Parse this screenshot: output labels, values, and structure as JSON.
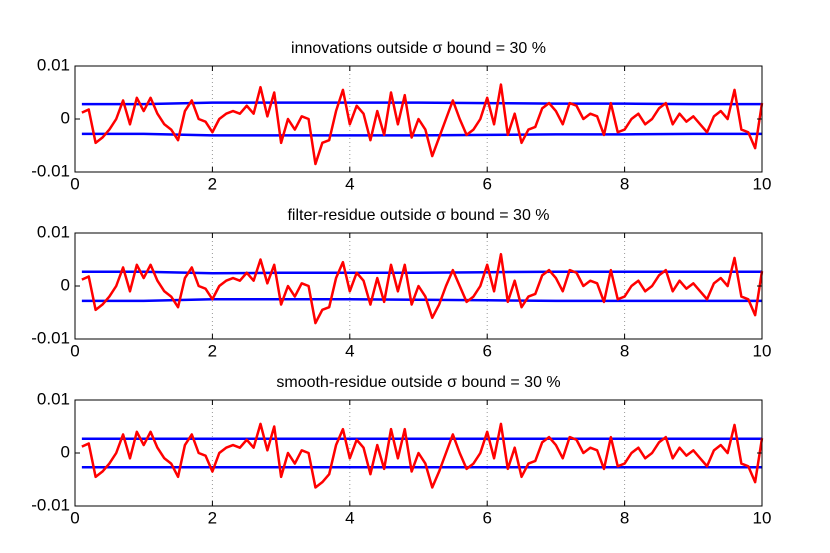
{
  "chart_data": [
    {
      "type": "line",
      "title": "innovations outside σ bound = 30 %",
      "x": [
        0.1,
        0.2,
        0.3,
        0.4,
        0.5,
        0.6,
        0.7,
        0.8,
        0.9,
        1,
        1.1,
        1.2,
        1.3,
        1.4,
        1.5,
        1.6,
        1.7,
        1.8,
        1.9,
        2,
        2.1,
        2.2,
        2.3,
        2.4,
        2.5,
        2.6,
        2.7,
        2.8,
        2.9,
        3,
        3.1,
        3.2,
        3.3,
        3.4,
        3.5,
        3.6,
        3.7,
        3.8,
        3.9,
        4,
        4.1,
        4.2,
        4.3,
        4.4,
        4.5,
        4.6,
        4.7,
        4.8,
        4.9,
        5,
        5.1,
        5.2,
        5.3,
        5.4,
        5.5,
        5.6,
        5.7,
        5.8,
        5.9,
        6,
        6.1,
        6.2,
        6.3,
        6.4,
        6.5,
        6.6,
        6.7,
        6.8,
        6.9,
        7,
        7.1,
        7.2,
        7.3,
        7.4,
        7.5,
        7.6,
        7.7,
        7.8,
        7.9,
        8,
        8.1,
        8.2,
        8.3,
        8.4,
        8.5,
        8.6,
        8.7,
        8.8,
        8.9,
        9,
        9.1,
        9.2,
        9.3,
        9.4,
        9.5,
        9.6,
        9.7,
        9.8,
        9.9,
        10
      ],
      "series": [
        {
          "color": "#0000ff",
          "x": [
            0.1,
            1,
            2,
            3,
            4,
            5,
            6,
            7,
            8,
            9,
            10
          ],
          "values": [
            0.0028,
            0.0028,
            0.0031,
            0.0031,
            0.0031,
            0.0031,
            0.003,
            0.0029,
            0.0029,
            0.0028,
            0.0028
          ]
        },
        {
          "color": "#0000ff",
          "x": [
            0.1,
            1,
            2,
            3,
            4,
            5,
            6,
            7,
            8,
            9,
            10
          ],
          "values": [
            -0.0028,
            -0.0028,
            -0.0031,
            -0.0031,
            -0.0031,
            -0.0031,
            -0.003,
            -0.0029,
            -0.0029,
            -0.0028,
            -0.0028
          ]
        },
        {
          "color": "#ff0000",
          "values": [
            0.0012,
            0.0018,
            -0.0045,
            -0.0035,
            -0.002,
            0,
            0.0035,
            -0.001,
            0.004,
            0.0015,
            0.004,
            0.001,
            -0.001,
            -0.002,
            -0.004,
            0.0015,
            0.0035,
            0,
            -0.0005,
            -0.0025,
            0,
            0.001,
            0.0015,
            0.001,
            0.0025,
            0.001,
            0.006,
            0.0005,
            0.005,
            -0.0045,
            0,
            -0.002,
            0.0005,
            0,
            -0.0085,
            -0.0045,
            -0.004,
            0.0015,
            0.0055,
            -0.001,
            0.0025,
            0.001,
            -0.004,
            0.0015,
            -0.003,
            0.005,
            -0.001,
            0.0045,
            -0.0035,
            0,
            -0.002,
            -0.007,
            -0.0035,
            0,
            0.0035,
            0,
            -0.003,
            -0.002,
            0,
            0.004,
            -0.001,
            0.0065,
            -0.003,
            0.001,
            -0.0045,
            -0.002,
            -0.0015,
            0.002,
            0.003,
            0.0015,
            -0.001,
            0.003,
            0.0025,
            0,
            0.001,
            0.0005,
            -0.003,
            0.003,
            -0.0025,
            -0.002,
            0,
            0.001,
            -0.001,
            0,
            0.002,
            0.003,
            -0.001,
            0.001,
            -0.0005,
            0.0005,
            -0.001,
            -0.0025,
            0.0005,
            0.0015,
            0,
            0.0055,
            -0.002,
            -0.0025,
            -0.0055,
            0.003
          ]
        }
      ],
      "xlim": [
        0,
        10
      ],
      "xticks": [
        0,
        2,
        4,
        6,
        8,
        10
      ],
      "ylim": [
        -0.01,
        0.01
      ],
      "yticks": [
        -0.01,
        0,
        0.01
      ],
      "xgrid": true
    },
    {
      "type": "line",
      "title": "filter-residue outside σ bound = 30 %",
      "x": [
        0.1,
        0.2,
        0.3,
        0.4,
        0.5,
        0.6,
        0.7,
        0.8,
        0.9,
        1,
        1.1,
        1.2,
        1.3,
        1.4,
        1.5,
        1.6,
        1.7,
        1.8,
        1.9,
        2,
        2.1,
        2.2,
        2.3,
        2.4,
        2.5,
        2.6,
        2.7,
        2.8,
        2.9,
        3,
        3.1,
        3.2,
        3.3,
        3.4,
        3.5,
        3.6,
        3.7,
        3.8,
        3.9,
        4,
        4.1,
        4.2,
        4.3,
        4.4,
        4.5,
        4.6,
        4.7,
        4.8,
        4.9,
        5,
        5.1,
        5.2,
        5.3,
        5.4,
        5.5,
        5.6,
        5.7,
        5.8,
        5.9,
        6,
        6.1,
        6.2,
        6.3,
        6.4,
        6.5,
        6.6,
        6.7,
        6.8,
        6.9,
        7,
        7.1,
        7.2,
        7.3,
        7.4,
        7.5,
        7.6,
        7.7,
        7.8,
        7.9,
        8,
        8.1,
        8.2,
        8.3,
        8.4,
        8.5,
        8.6,
        8.7,
        8.8,
        8.9,
        9,
        9.1,
        9.2,
        9.3,
        9.4,
        9.5,
        9.6,
        9.7,
        9.8,
        9.9,
        10
      ],
      "series": [
        {
          "color": "#0000ff",
          "x": [
            0.1,
            1,
            2,
            3,
            4,
            5,
            6,
            7,
            8,
            9,
            10
          ],
          "values": [
            0.0027,
            0.0027,
            0.0024,
            0.0025,
            0.0025,
            0.0025,
            0.0026,
            0.0027,
            0.0027,
            0.0027,
            0.0027
          ]
        },
        {
          "color": "#0000ff",
          "x": [
            0.1,
            1,
            2,
            3,
            4,
            5,
            6,
            7,
            8,
            9,
            10
          ],
          "values": [
            -0.0028,
            -0.0028,
            -0.0025,
            -0.0025,
            -0.0025,
            -0.0026,
            -0.0027,
            -0.0028,
            -0.0028,
            -0.0028,
            -0.0028
          ]
        },
        {
          "color": "#ff0000",
          "values": [
            0.0012,
            0.0018,
            -0.0045,
            -0.0035,
            -0.002,
            0,
            0.0035,
            -0.001,
            0.004,
            0.0015,
            0.004,
            0.001,
            -0.001,
            -0.002,
            -0.004,
            0.0015,
            0.0035,
            0,
            -0.0005,
            -0.0025,
            0,
            0.001,
            0.0015,
            0.001,
            0.0025,
            0.001,
            0.005,
            0.0005,
            0.004,
            -0.0035,
            0,
            -0.002,
            0.0005,
            0,
            -0.007,
            -0.0045,
            -0.004,
            0.0015,
            0.0045,
            -0.001,
            0.0025,
            0.001,
            -0.0035,
            0.0015,
            -0.003,
            0.004,
            -0.001,
            0.004,
            -0.0035,
            0,
            -0.002,
            -0.006,
            -0.0035,
            0,
            0.003,
            0,
            -0.003,
            -0.002,
            0,
            0.004,
            -0.001,
            0.006,
            -0.003,
            0.001,
            -0.004,
            -0.002,
            -0.0015,
            0.002,
            0.003,
            0.0015,
            -0.001,
            0.003,
            0.0025,
            0,
            0.001,
            0.0005,
            -0.003,
            0.003,
            -0.0025,
            -0.002,
            0,
            0.001,
            -0.001,
            0,
            0.002,
            0.003,
            -0.001,
            0.001,
            -0.0005,
            0.0005,
            -0.001,
            -0.0025,
            0.0005,
            0.0015,
            0,
            0.0053,
            -0.002,
            -0.0025,
            -0.0055,
            0.0028
          ]
        }
      ],
      "xlim": [
        0,
        10
      ],
      "xticks": [
        0,
        2,
        4,
        6,
        8,
        10
      ],
      "ylim": [
        -0.01,
        0.01
      ],
      "yticks": [
        -0.01,
        0,
        0.01
      ],
      "xgrid": true
    },
    {
      "type": "line",
      "title": "smooth-residue outside σ bound = 30 %",
      "x": [
        0.1,
        0.2,
        0.3,
        0.4,
        0.5,
        0.6,
        0.7,
        0.8,
        0.9,
        1,
        1.1,
        1.2,
        1.3,
        1.4,
        1.5,
        1.6,
        1.7,
        1.8,
        1.9,
        2,
        2.1,
        2.2,
        2.3,
        2.4,
        2.5,
        2.6,
        2.7,
        2.8,
        2.9,
        3,
        3.1,
        3.2,
        3.3,
        3.4,
        3.5,
        3.6,
        3.7,
        3.8,
        3.9,
        4,
        4.1,
        4.2,
        4.3,
        4.4,
        4.5,
        4.6,
        4.7,
        4.8,
        4.9,
        5,
        5.1,
        5.2,
        5.3,
        5.4,
        5.5,
        5.6,
        5.7,
        5.8,
        5.9,
        6,
        6.1,
        6.2,
        6.3,
        6.4,
        6.5,
        6.6,
        6.7,
        6.8,
        6.9,
        7,
        7.1,
        7.2,
        7.3,
        7.4,
        7.5,
        7.6,
        7.7,
        7.8,
        7.9,
        8,
        8.1,
        8.2,
        8.3,
        8.4,
        8.5,
        8.6,
        8.7,
        8.8,
        8.9,
        9,
        9.1,
        9.2,
        9.3,
        9.4,
        9.5,
        9.6,
        9.7,
        9.8,
        9.9,
        10
      ],
      "series": [
        {
          "color": "#0000ff",
          "x": [
            0.1,
            1,
            2,
            3,
            4,
            5,
            6,
            7,
            8,
            9,
            10
          ],
          "values": [
            0.0027,
            0.0027,
            0.0027,
            0.0027,
            0.0027,
            0.0027,
            0.0027,
            0.0027,
            0.0027,
            0.0027,
            0.0027
          ]
        },
        {
          "color": "#0000ff",
          "x": [
            0.1,
            1,
            2,
            3,
            4,
            5,
            6,
            7,
            8,
            9,
            10
          ],
          "values": [
            -0.0027,
            -0.0027,
            -0.0027,
            -0.0027,
            -0.0027,
            -0.0027,
            -0.0027,
            -0.0027,
            -0.0027,
            -0.0027,
            -0.0027
          ]
        },
        {
          "color": "#ff0000",
          "values": [
            0.0012,
            0.0018,
            -0.0045,
            -0.0035,
            -0.002,
            0,
            0.0035,
            -0.001,
            0.004,
            0.0015,
            0.004,
            0.001,
            -0.001,
            -0.002,
            -0.0045,
            0.0015,
            0.0035,
            0,
            -0.0005,
            -0.0035,
            0,
            0.001,
            0.0015,
            0.001,
            0.0025,
            0.001,
            0.0055,
            0.0005,
            0.005,
            -0.0045,
            0,
            -0.002,
            0.0005,
            0,
            -0.0065,
            -0.0055,
            -0.004,
            0.0015,
            0.0045,
            -0.001,
            0.0025,
            0.001,
            -0.004,
            0.0015,
            -0.003,
            0.0045,
            -0.001,
            0.0045,
            -0.0035,
            0,
            -0.002,
            -0.0065,
            -0.0035,
            0,
            0.0035,
            0,
            -0.003,
            -0.002,
            0,
            0.004,
            -0.001,
            0.0055,
            -0.003,
            0.001,
            -0.0045,
            -0.002,
            -0.0015,
            0.002,
            0.003,
            0.0015,
            -0.001,
            0.003,
            0.0025,
            0,
            0.001,
            0.0005,
            -0.003,
            0.003,
            -0.0025,
            -0.002,
            0,
            0.001,
            -0.001,
            0,
            0.002,
            0.003,
            -0.001,
            0.001,
            -0.0005,
            0.0005,
            -0.001,
            -0.0025,
            0.0005,
            0.0015,
            0,
            0.0053,
            -0.002,
            -0.0025,
            -0.0055,
            0.0028
          ]
        }
      ],
      "xlim": [
        0,
        10
      ],
      "xticks": [
        0,
        2,
        4,
        6,
        8,
        10
      ],
      "ylim": [
        -0.01,
        0.01
      ],
      "yticks": [
        -0.01,
        0,
        0.01
      ],
      "xgrid": true
    }
  ]
}
